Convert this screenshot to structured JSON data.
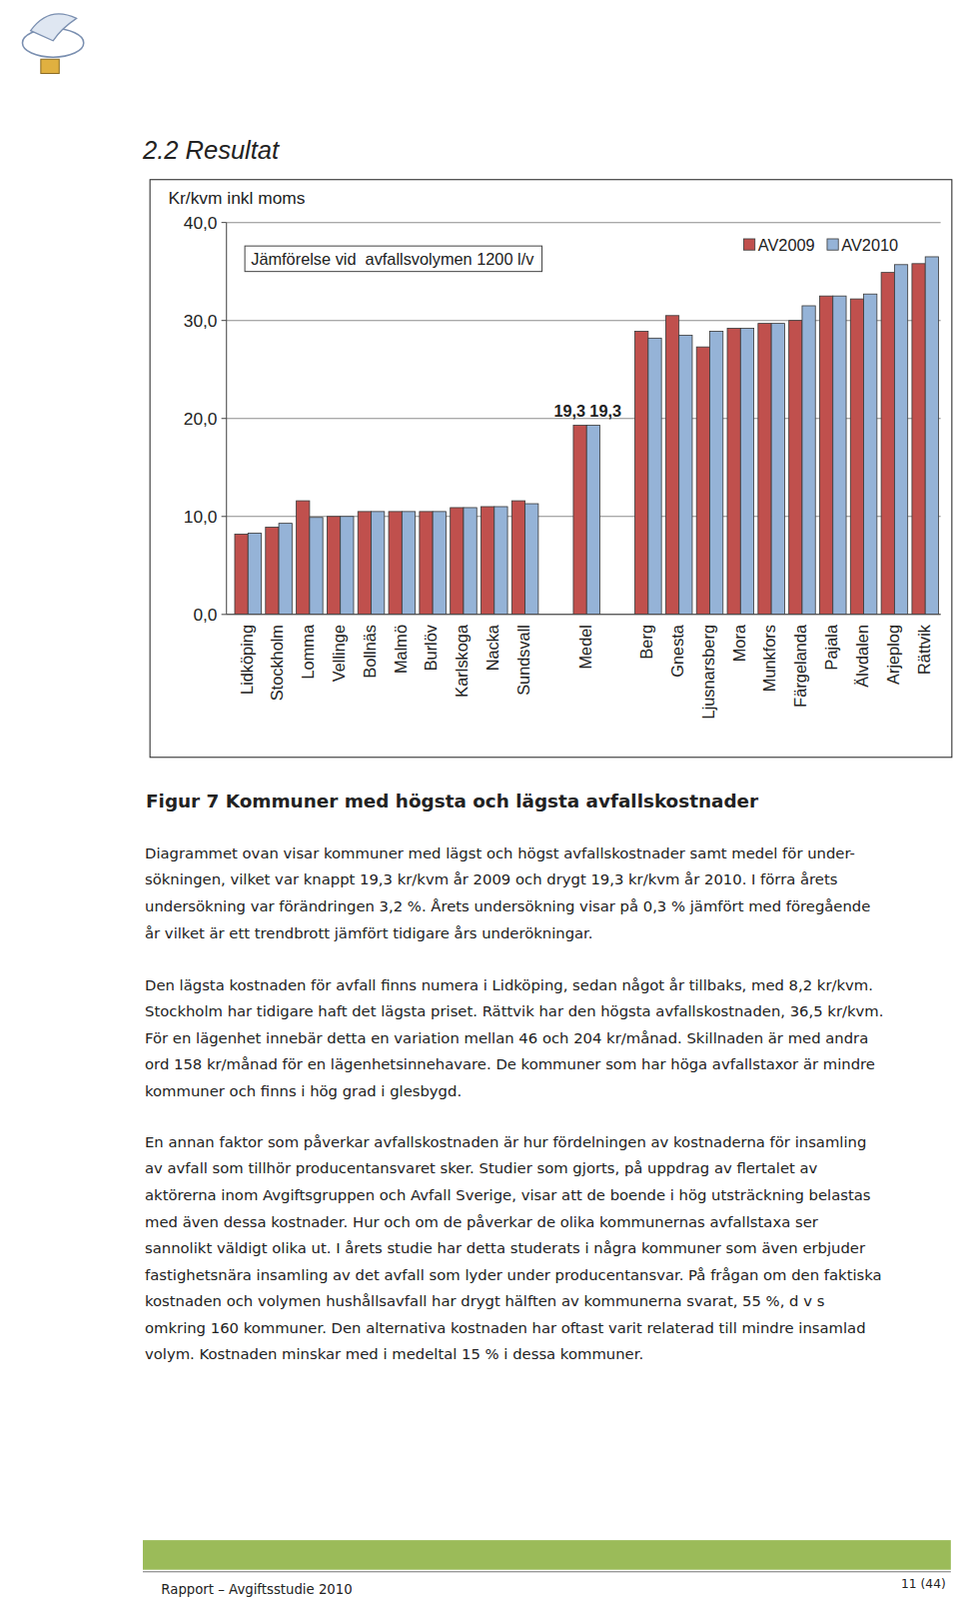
{
  "chart_data": {
    "type": "bar",
    "title": "Jämförelse vid  avfallsvolymen 1200 l/v",
    "y_label": "Kr/kvm inkl moms",
    "categories": [
      "Lidköping",
      "Stockholm",
      "Lomma",
      "Vellinge",
      "Bollnäs",
      "Malmö",
      "Burlöv",
      "Karlskoga",
      "Nacka",
      "Sundsvall",
      null,
      "Medel",
      null,
      "Berg",
      "Gnesta",
      "Ljusnarsberg",
      "Mora",
      "Munkfors",
      "Färgelanda",
      "Pajala",
      "Älvdalen",
      "Arjeplog",
      "Rättvik"
    ],
    "series": [
      {
        "name": "AV2009",
        "color": "#c0504d",
        "values": [
          8.2,
          8.9,
          11.6,
          10.0,
          10.5,
          10.5,
          10.5,
          10.9,
          11.0,
          11.6,
          null,
          19.3,
          null,
          28.9,
          30.5,
          27.3,
          29.2,
          29.7,
          30.0,
          32.5,
          32.2,
          34.9,
          35.8
        ],
        "value_labels": [
          null,
          null,
          null,
          null,
          null,
          null,
          null,
          null,
          null,
          null,
          null,
          "19,3",
          null,
          null,
          null,
          null,
          null,
          null,
          null,
          null,
          null,
          null,
          null
        ]
      },
      {
        "name": "AV2010",
        "color": "#95b3d7",
        "values": [
          8.3,
          9.3,
          9.9,
          10.0,
          10.5,
          10.5,
          10.5,
          10.9,
          11.0,
          11.3,
          null,
          19.3,
          null,
          28.2,
          28.5,
          28.9,
          29.2,
          29.7,
          31.5,
          32.5,
          32.7,
          35.7,
          36.5
        ],
        "value_labels": [
          null,
          null,
          null,
          null,
          null,
          null,
          null,
          null,
          null,
          null,
          null,
          "19,3",
          null,
          null,
          null,
          null,
          null,
          null,
          null,
          null,
          null,
          null,
          null
        ]
      }
    ],
    "ylim": [
      0,
      40
    ],
    "yticks": [
      {
        "value": 0,
        "label": "0,0"
      },
      {
        "value": 10,
        "label": "10,0"
      },
      {
        "value": 20,
        "label": "20,0"
      },
      {
        "value": 30,
        "label": "30,0"
      },
      {
        "value": 40,
        "label": "40,0"
      }
    ],
    "grid": true,
    "legend": "top-right"
  },
  "page": {
    "header": "2.2 Resultat",
    "caption": "Figur 7 Kommuner med högsta och lägsta avfallskostnader",
    "paragraphs": [
      [
        "Diagrammet ovan visar kommuner med lägst och högst avfallskostnader samt medel för under-",
        "sökningen, vilket var knappt 19,3 kr/kvm år 2009 och drygt 19,3 kr/kvm år 2010. I förra årets",
        "undersökning var förändringen 3,2 %. Årets undersökning visar på 0,3 % jämfört med föregående",
        "år vilket är ett trendbrott jämfört tidigare års underökningar."
      ],
      [
        "Den lägsta kostnaden för avfall finns numera i Lidköping, sedan något år tillbaks, med 8,2 kr/kvm.",
        "Stockholm har tidigare haft det lägsta priset. Rättvik har den högsta avfallskostnaden, 36,5 kr/kvm.",
        "För en lägenhet innebär detta en variation mellan 46 och 204 kr/månad. Skillnaden är med andra",
        "ord 158 kr/månad för en lägenhetsinnehavare. De kommuner som har höga avfallstaxor är mindre",
        "kommuner och finns i hög grad i glesbygd."
      ],
      [
        "En annan faktor som påverkar avfallskostnaden är hur fördelningen av kostnaderna för insamling",
        "av avfall som tillhör producentansvaret sker. Studier som gjorts, på uppdrag av flertalet av",
        "aktörerna inom Avgiftsgruppen och Avfall Sverige, visar att de boende i hög utsträckning belastas",
        "med även dessa kostnader. Hur och om de påverkar de olika kommunernas avfallstaxa ser",
        "sannolikt väldigt olika ut. I årets studie har detta studerats i några kommuner som även erbjuder",
        "fastighetsnära insamling av det avfall som lyder under producentansvar. På frågan om den faktiska",
        "kostnaden och volymen hushållsavfall har drygt hälften av kommunerna svarat, 55 %, d v s",
        "omkring 160 kommuner. Den alternativa kostnaden har oftast varit relaterad till mindre insamlad",
        "volym. Kostnaden minskar med i medeltal 15 % i dessa kommuner."
      ]
    ],
    "footer": {
      "left": "Rapport – Avgiftsstudie 2010",
      "page": "11 (44)"
    }
  }
}
